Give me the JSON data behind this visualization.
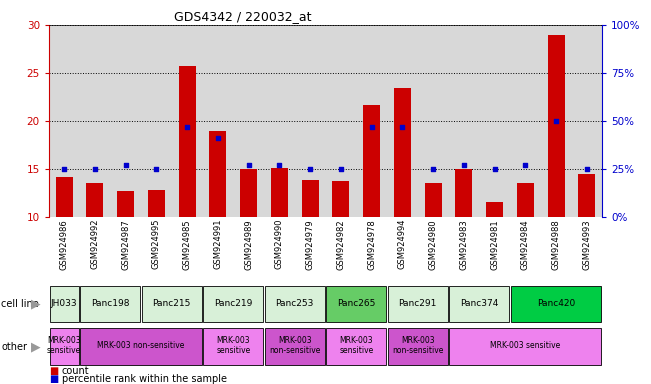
{
  "title": "GDS4342 / 220032_at",
  "gsm_labels": [
    "GSM924986",
    "GSM924992",
    "GSM924987",
    "GSM924995",
    "GSM924985",
    "GSM924991",
    "GSM924989",
    "GSM924990",
    "GSM924979",
    "GSM924982",
    "GSM924978",
    "GSM924994",
    "GSM924980",
    "GSM924983",
    "GSM924981",
    "GSM924984",
    "GSM924988",
    "GSM924993"
  ],
  "count_values": [
    14.2,
    13.5,
    12.7,
    12.8,
    25.7,
    19.0,
    15.0,
    15.1,
    13.9,
    13.7,
    21.7,
    23.4,
    13.5,
    15.0,
    11.6,
    13.5,
    29.0,
    14.5
  ],
  "percentile_values": [
    25,
    25,
    27,
    25,
    47,
    41,
    27,
    27,
    25,
    25,
    47,
    47,
    25,
    27,
    25,
    27,
    50,
    25
  ],
  "ylim_left": [
    10,
    30
  ],
  "ylim_right": [
    0,
    100
  ],
  "yticks_left": [
    10,
    15,
    20,
    25,
    30
  ],
  "yticks_right": [
    0,
    25,
    50,
    75,
    100
  ],
  "cell_lines": [
    {
      "label": "JH033",
      "start": 0,
      "end": 1,
      "color": "#d8f0d8"
    },
    {
      "label": "Panc198",
      "start": 1,
      "end": 3,
      "color": "#d8f0d8"
    },
    {
      "label": "Panc215",
      "start": 3,
      "end": 5,
      "color": "#d8f0d8"
    },
    {
      "label": "Panc219",
      "start": 5,
      "end": 7,
      "color": "#d8f0d8"
    },
    {
      "label": "Panc253",
      "start": 7,
      "end": 9,
      "color": "#d8f0d8"
    },
    {
      "label": "Panc265",
      "start": 9,
      "end": 11,
      "color": "#66cc66"
    },
    {
      "label": "Panc291",
      "start": 11,
      "end": 13,
      "color": "#d8f0d8"
    },
    {
      "label": "Panc374",
      "start": 13,
      "end": 15,
      "color": "#d8f0d8"
    },
    {
      "label": "Panc420",
      "start": 15,
      "end": 18,
      "color": "#00cc44"
    }
  ],
  "other_groups": [
    {
      "label": "MRK-003\nsensitive",
      "start": 0,
      "end": 1,
      "color": "#ee82ee"
    },
    {
      "label": "MRK-003 non-sensitive",
      "start": 1,
      "end": 5,
      "color": "#cc55cc"
    },
    {
      "label": "MRK-003\nsensitive",
      "start": 5,
      "end": 7,
      "color": "#ee82ee"
    },
    {
      "label": "MRK-003\nnon-sensitive",
      "start": 7,
      "end": 9,
      "color": "#cc55cc"
    },
    {
      "label": "MRK-003\nsensitive",
      "start": 9,
      "end": 11,
      "color": "#ee82ee"
    },
    {
      "label": "MRK-003\nnon-sensitive",
      "start": 11,
      "end": 13,
      "color": "#cc55cc"
    },
    {
      "label": "MRK-003 sensitive",
      "start": 13,
      "end": 18,
      "color": "#ee82ee"
    }
  ],
  "bar_color": "#cc0000",
  "dot_color": "#0000cc",
  "grid_color": "black",
  "tick_color_left": "#cc0000",
  "tick_color_right": "#0000cc",
  "bg_color": "#ffffff",
  "plot_bg_color": "#d8d8d8",
  "xticklabel_bg": "#d8d8d8"
}
